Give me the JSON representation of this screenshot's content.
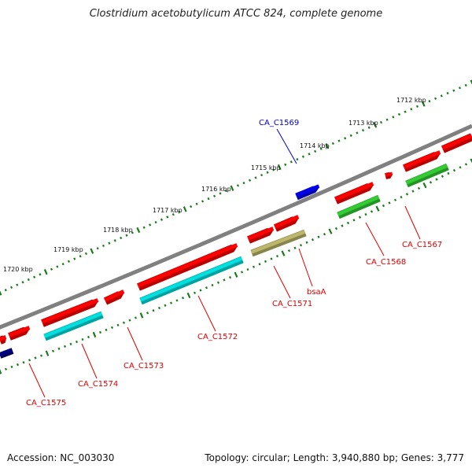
{
  "header": {
    "title": "Clostridium acetobutylicum ATCC 824, complete genome"
  },
  "footer": {
    "accession": "Accession: NC_003030",
    "summary": "Topology: circular; Length: 3,940,880 bp; Genes: 3,777"
  },
  "colors": {
    "backbone": "#808080",
    "tick": "#1a7a1a",
    "cds": "#ff0000",
    "blue_gene": "#0000ee",
    "label_red": "#dd0000",
    "label_blue": "#0000cc",
    "cyan": "#00e0e0",
    "green": "#33cc33",
    "khaki": "#bdb76b",
    "navy": "#000080"
  },
  "scale_labels": [
    "1712 kbp",
    "1713 kbp",
    "1714 kbp",
    "1715 kbp",
    "1716 kbp",
    "1717 kbp",
    "1718 kbp",
    "1719 kbp",
    "1720 kbp"
  ],
  "genes": [
    {
      "name": "CA_C1567",
      "color": "label_red"
    },
    {
      "name": "CA_C1568",
      "color": "label_red"
    },
    {
      "name": "CA_C1569",
      "color": "label_blue"
    },
    {
      "name": "bsaA",
      "color": "label_red"
    },
    {
      "name": "CA_C1571",
      "color": "label_red"
    },
    {
      "name": "CA_C1572",
      "color": "label_red"
    },
    {
      "name": "CA_C1573",
      "color": "label_red"
    },
    {
      "name": "CA_C1574",
      "color": "label_red"
    },
    {
      "name": "CA_C1575",
      "color": "label_red"
    }
  ]
}
